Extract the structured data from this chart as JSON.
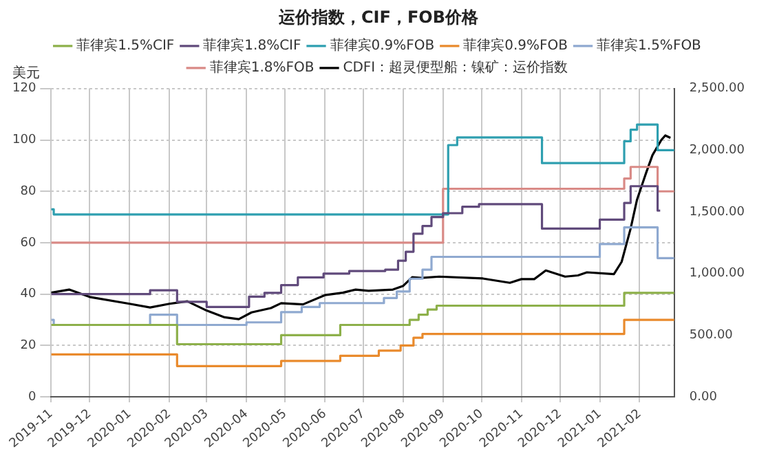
{
  "chart_data": {
    "type": "step",
    "title": "运价指数，CIF，FOB价格",
    "ylabel": "美元",
    "xlim": [
      "2019-11-01",
      "2021-02-28"
    ],
    "xticks": [
      "2019-11",
      "2019-12",
      "2020-01",
      "2020-02",
      "2020-03",
      "2020-04",
      "2020-05",
      "2020-06",
      "2020-07",
      "2020-08",
      "2020-09",
      "2020-10",
      "2020-11",
      "2020-12",
      "2021-01",
      "2021-02"
    ],
    "ylim": [
      0,
      120
    ],
    "yticks": [
      0,
      20,
      40,
      60,
      80,
      100,
      120
    ],
    "y2lim": [
      0,
      2500
    ],
    "y2ticks": [
      {
        "value": 0,
        "label": "0.00"
      },
      {
        "value": 500,
        "label": "500.00"
      },
      {
        "value": 1000,
        "label": "1,000.00"
      },
      {
        "value": 1500,
        "label": "1,500.00"
      },
      {
        "value": 2000,
        "label": "2,000.00"
      },
      {
        "value": 2500,
        "label": "2,500.00"
      }
    ],
    "grid": true,
    "legend": "top",
    "marker": "none",
    "line_style": "solid",
    "series": [
      {
        "name": "菲律宾1.5%CIF",
        "color": "#8db04a",
        "x": [
          "2019-11-01",
          "2020-02-07",
          "2020-04-28",
          "2020-06-13",
          "2020-08-06",
          "2020-08-13",
          "2020-08-20",
          "2020-08-27",
          "2021-01-20",
          "2021-02-28"
        ],
        "values": [
          28,
          20.5,
          24,
          28,
          30,
          32,
          34,
          35.5,
          40.5,
          40.5
        ]
      },
      {
        "name": "菲律宾1.8%CIF",
        "color": "#604a7b",
        "x": [
          "2019-11-01",
          "2020-01-17",
          "2020-02-07",
          "2020-03-01",
          "2020-04-03",
          "2020-04-15",
          "2020-04-28",
          "2020-05-11",
          "2020-05-31",
          "2020-06-20",
          "2020-07-18",
          "2020-07-28",
          "2020-08-03",
          "2020-08-09",
          "2020-08-16",
          "2020-08-23",
          "2020-09-01",
          "2020-09-16",
          "2020-09-29",
          "2020-11-17",
          "2021-01-01",
          "2021-01-20",
          "2021-01-25",
          "2021-02-15",
          "2021-02-17"
        ],
        "values": [
          40,
          41.5,
          37,
          35,
          39,
          40.5,
          43.5,
          46.5,
          48,
          49,
          49.5,
          53,
          56.5,
          63.5,
          66.5,
          70,
          71.5,
          74,
          75,
          65.5,
          69,
          75.5,
          82,
          72.5,
          72.5
        ]
      },
      {
        "name": "菲律宾0.9%FOB",
        "color": "#2e9fb0",
        "x": [
          "2019-11-01",
          "2019-11-03",
          "2020-08-31",
          "2020-09-05",
          "2020-09-12",
          "2020-11-17",
          "2021-01-20",
          "2021-01-25",
          "2021-01-30",
          "2021-02-15",
          "2021-02-28"
        ],
        "values": [
          73,
          71,
          71,
          98,
          101,
          91,
          99.5,
          104,
          106,
          96,
          96
        ]
      },
      {
        "name": "菲律宾0.9%FOB",
        "color": "#e98a2c",
        "x": [
          "2019-11-01",
          "2020-02-07",
          "2020-04-28",
          "2020-06-13",
          "2020-07-13",
          "2020-07-30",
          "2020-08-09",
          "2020-08-16",
          "2021-01-20",
          "2021-02-28"
        ],
        "values": [
          16.5,
          12,
          14,
          16,
          18,
          20,
          23,
          24.5,
          30,
          30
        ]
      },
      {
        "name": "菲律宾1.5%FOB",
        "color": "#8fa9d0",
        "x": [
          "2019-11-01",
          "2019-11-03",
          "2020-01-17",
          "2020-02-07",
          "2020-04-01",
          "2020-04-28",
          "2020-05-14",
          "2020-05-28",
          "2020-07-17",
          "2020-07-27",
          "2020-08-06",
          "2020-08-16",
          "2020-08-23",
          "2021-01-01",
          "2021-01-20",
          "2021-02-15",
          "2021-02-28"
        ],
        "values": [
          30,
          28,
          32,
          28,
          29,
          33,
          35,
          36.5,
          38.5,
          41,
          46,
          49.5,
          54.5,
          59.5,
          66,
          54,
          54
        ]
      },
      {
        "name": "菲律宾1.8%FOB",
        "color": "#d98a86",
        "x": [
          "2019-11-01",
          "2020-09-01",
          "2021-01-20",
          "2021-01-25",
          "2021-02-15",
          "2021-02-28"
        ],
        "values": [
          60,
          81,
          85,
          89.5,
          80,
          80
        ]
      },
      {
        "name": "CDFI：超灵便型船：镍矿：运价指数",
        "color": "#000000",
        "type": "line",
        "axis": "y2",
        "x": [
          "2019-11-01",
          "2019-11-15",
          "2019-12-01",
          "2020-01-01",
          "2020-01-17",
          "2020-02-01",
          "2020-02-15",
          "2020-03-01",
          "2020-03-15",
          "2020-03-26",
          "2020-04-05",
          "2020-04-20",
          "2020-04-28",
          "2020-05-15",
          "2020-06-01",
          "2020-06-15",
          "2020-06-25",
          "2020-07-05",
          "2020-07-24",
          "2020-08-01",
          "2020-08-08",
          "2020-08-15",
          "2020-08-29",
          "2020-10-02",
          "2020-10-23",
          "2020-11-01",
          "2020-11-11",
          "2020-11-20",
          "2020-12-05",
          "2020-12-15",
          "2020-12-22",
          "2021-01-12",
          "2021-01-18",
          "2021-01-25",
          "2021-01-30",
          "2021-02-06",
          "2021-02-11",
          "2021-02-18",
          "2021-02-21",
          "2021-02-25"
        ],
        "values": [
          845,
          870,
          810,
          755,
          725,
          755,
          775,
          700,
          645,
          630,
          685,
          720,
          760,
          750,
          825,
          845,
          870,
          860,
          870,
          900,
          970,
          965,
          975,
          960,
          925,
          955,
          955,
          1025,
          975,
          985,
          1010,
          995,
          1095,
          1365,
          1600,
          1815,
          1960,
          2085,
          2120,
          2100
        ]
      }
    ]
  }
}
